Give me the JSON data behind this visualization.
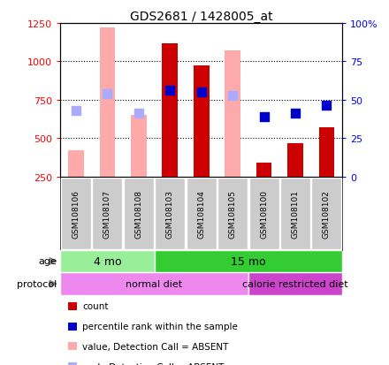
{
  "title": "GDS2681 / 1428005_at",
  "samples": [
    "GSM108106",
    "GSM108107",
    "GSM108108",
    "GSM108103",
    "GSM108104",
    "GSM108105",
    "GSM108100",
    "GSM108101",
    "GSM108102"
  ],
  "count_values": [
    null,
    null,
    null,
    1120,
    975,
    null,
    340,
    470,
    570
  ],
  "count_color": "#cc0000",
  "value_absent": [
    420,
    1220,
    650,
    null,
    null,
    1070,
    null,
    null,
    null
  ],
  "value_absent_color": "#ffaaaa",
  "rank_absent": [
    680,
    790,
    665,
    null,
    null,
    780,
    null,
    null,
    null
  ],
  "rank_absent_color": "#aaaaff",
  "percentile_values": [
    null,
    null,
    null,
    810,
    800,
    null,
    640,
    660,
    715
  ],
  "percentile_color": "#0000cc",
  "ylim_left": [
    250,
    1250
  ],
  "ylim_right": [
    0,
    100
  ],
  "yticks_left": [
    250,
    500,
    750,
    1000,
    1250
  ],
  "yticks_right": [
    0,
    25,
    50,
    75,
    100
  ],
  "ytick_labels_right": [
    "0",
    "25",
    "50",
    "75",
    "100%"
  ],
  "age_groups": [
    {
      "label": "4 mo",
      "start": 0,
      "end": 3,
      "color": "#99ee99"
    },
    {
      "label": "15 mo",
      "start": 3,
      "end": 9,
      "color": "#33cc33"
    }
  ],
  "protocol_groups": [
    {
      "label": "normal diet",
      "start": 0,
      "end": 6,
      "color": "#ee88ee"
    },
    {
      "label": "calorie restricted diet",
      "start": 6,
      "end": 9,
      "color": "#cc44cc"
    }
  ],
  "legend_items": [
    {
      "label": "count",
      "color": "#cc0000"
    },
    {
      "label": "percentile rank within the sample",
      "color": "#0000cc"
    },
    {
      "label": "value, Detection Call = ABSENT",
      "color": "#ffaaaa"
    },
    {
      "label": "rank, Detection Call = ABSENT",
      "color": "#aaaaff"
    }
  ],
  "bar_width": 0.5,
  "dot_size": 55,
  "background_color": "#ffffff"
}
